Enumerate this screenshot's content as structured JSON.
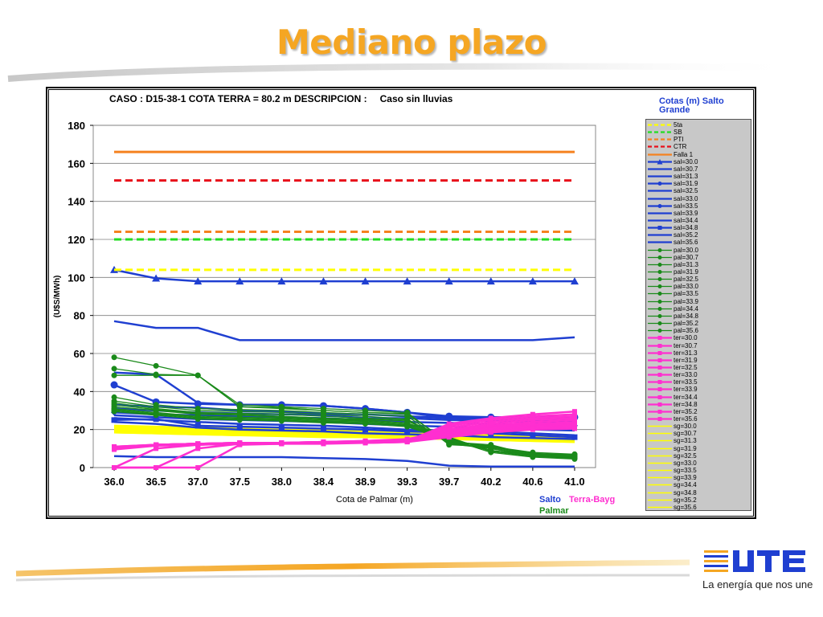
{
  "slide": {
    "title": "Mediano plazo",
    "title_color": "#f5a623",
    "slogan": "La energía que nos une",
    "logo_icon": "ute-logo-icon",
    "logo_text": "UTE"
  },
  "labels": {
    "caso": "CASO : D15-38-1 COTA TERRA = 80.2 m  DESCRIPCION :",
    "descripcion": "Caso sin lluvias",
    "ylabel": "(U$S/MWh)",
    "xlabel": "Cota de Palmar (m)",
    "legend_title": "Cotas (m) Salto Grande",
    "salto": "Salto",
    "terra": "Terra-Bayg",
    "palmar": "Palmar"
  },
  "chart_data": {
    "type": "line",
    "title": "CASO : D15-38-1 COTA TERRA = 80.2 m  DESCRIPCION : Caso sin lluvias",
    "xlabel": "Cota de Palmar (m)",
    "ylabel": "(U$S/MWh)",
    "ylim": [
      0,
      180
    ],
    "yticks": [
      0,
      20,
      40,
      60,
      80,
      100,
      120,
      140,
      160,
      180
    ],
    "categories": [
      "36.0",
      "36.5",
      "37.0",
      "37.5",
      "38.0",
      "38.4",
      "38.9",
      "39.3",
      "39.7",
      "40.2",
      "40.6",
      "41.0"
    ],
    "grid": true,
    "legend_position": "right",
    "colors": {
      "salto": "#1f3fd1",
      "palmar": "#1a8a1a",
      "terra": "#ff2fd0",
      "sg": "#ffff00",
      "5ta": "#ffff00",
      "SB": "#22dd22",
      "PTI": "#f5821f",
      "CTR": "#e8101a",
      "Falla 1": "#f5821f"
    },
    "series": [
      {
        "name": "5ta",
        "group": "ref",
        "style": "dash",
        "color": "#ffff00",
        "values": [
          104,
          104,
          104,
          104,
          104,
          104,
          104,
          104,
          104,
          104,
          104,
          104
        ]
      },
      {
        "name": "SB",
        "group": "ref",
        "style": "dash",
        "color": "#22dd22",
        "values": [
          120,
          120,
          120,
          120,
          120,
          120,
          120,
          120,
          120,
          120,
          120,
          120
        ]
      },
      {
        "name": "PTI",
        "group": "ref",
        "style": "dash",
        "color": "#f5821f",
        "values": [
          124,
          124,
          124,
          124,
          124,
          124,
          124,
          124,
          124,
          124,
          124,
          124
        ]
      },
      {
        "name": "CTR",
        "group": "ref",
        "style": "dash",
        "color": "#e8101a",
        "values": [
          151,
          151,
          151,
          151,
          151,
          151,
          151,
          151,
          151,
          151,
          151,
          151
        ]
      },
      {
        "name": "Falla 1",
        "group": "ref",
        "style": "solid",
        "color": "#f5821f",
        "values": [
          166,
          166,
          166,
          166,
          166,
          166,
          166,
          166,
          166,
          166,
          166,
          166
        ]
      },
      {
        "name": "sal=30.0",
        "group": "salto",
        "marker": "triangle",
        "values": [
          104,
          99.5,
          98,
          98,
          98,
          98,
          98,
          98,
          98,
          98,
          98,
          98
        ]
      },
      {
        "name": "sal=30.7",
        "group": "salto",
        "values": [
          77,
          73.5,
          73.5,
          67,
          67,
          67,
          67,
          67,
          67,
          67,
          67,
          68.5
        ]
      },
      {
        "name": "sal=31.3",
        "group": "salto",
        "values": [
          50,
          49,
          34,
          33,
          33,
          32.5,
          31,
          29,
          26,
          26,
          26,
          26.5
        ]
      },
      {
        "name": "sal=31.9",
        "group": "salto",
        "marker": "circle",
        "values": [
          43.5,
          34.5,
          33.5,
          33,
          33,
          32.5,
          31,
          29,
          27,
          26.5,
          26.5,
          26.5
        ]
      },
      {
        "name": "sal=32.5",
        "group": "salto",
        "values": [
          33,
          32,
          31.5,
          30,
          29.5,
          28.5,
          28,
          27,
          26,
          25.5,
          25,
          25
        ]
      },
      {
        "name": "sal=33.0",
        "group": "salto",
        "values": [
          31,
          30,
          29,
          28.5,
          28,
          27.5,
          26,
          26,
          25,
          24.5,
          24,
          24
        ]
      },
      {
        "name": "sal=33.5",
        "group": "salto",
        "marker": "diamond",
        "values": [
          29,
          28,
          27.5,
          27,
          26.5,
          26,
          25,
          24,
          23.5,
          23,
          22.5,
          22
        ]
      },
      {
        "name": "sal=33.9",
        "group": "salto",
        "values": [
          27.5,
          26.5,
          25.5,
          25,
          24.5,
          24,
          23,
          22,
          21.5,
          21,
          20,
          19.5
        ]
      },
      {
        "name": "sal=34.4",
        "group": "salto",
        "values": [
          26,
          25,
          24,
          23,
          22.5,
          22,
          21,
          20,
          19.5,
          19,
          18,
          17
        ]
      },
      {
        "name": "sal=34.8",
        "group": "salto",
        "marker": "square",
        "values": [
          25,
          25.5,
          22,
          21.5,
          21,
          20.5,
          20,
          19,
          18.5,
          18,
          17,
          16
        ]
      },
      {
        "name": "sal=35.2",
        "group": "salto",
        "values": [
          24,
          23,
          21,
          20,
          19.5,
          19,
          18,
          17.5,
          17,
          16,
          15.5,
          15
        ]
      },
      {
        "name": "sal=35.6",
        "group": "salto",
        "values": [
          6,
          5.5,
          5.5,
          5.5,
          5.5,
          5,
          4.5,
          3.5,
          1,
          0.5,
          0.5,
          0.5
        ]
      },
      {
        "name": "pal=30.0",
        "group": "palmar",
        "values": [
          58,
          53.5,
          48.5,
          32,
          31,
          30,
          29,
          28.5,
          13,
          11.5,
          7,
          7
        ]
      },
      {
        "name": "pal=30.7",
        "group": "palmar",
        "values": [
          52,
          49,
          48.5,
          33,
          32,
          31,
          30,
          29,
          12,
          11,
          7,
          6
        ]
      },
      {
        "name": "pal=31.3",
        "group": "palmar",
        "values": [
          48.5,
          48.5,
          48.5,
          32,
          31.5,
          30,
          29,
          28,
          13.5,
          12,
          6.5,
          5.5
        ]
      },
      {
        "name": "pal=31.9",
        "group": "palmar",
        "values": [
          37,
          33,
          31,
          30.5,
          30,
          29,
          28,
          27,
          12.5,
          10,
          6,
          5
        ]
      },
      {
        "name": "pal=32.5",
        "group": "palmar",
        "values": [
          35,
          32,
          30,
          29.5,
          29,
          28,
          27,
          25.5,
          13,
          10,
          6.5,
          5.5
        ]
      },
      {
        "name": "pal=33.0",
        "group": "palmar",
        "values": [
          34,
          31,
          29,
          28.5,
          28,
          27,
          26,
          25,
          14,
          9,
          6,
          5
        ]
      },
      {
        "name": "pal=33.5",
        "group": "palmar",
        "values": [
          33,
          30.5,
          28.5,
          28,
          27,
          26,
          25.5,
          24.5,
          15,
          8,
          5.5,
          4.5
        ]
      },
      {
        "name": "pal=33.9",
        "group": "palmar",
        "values": [
          32,
          30,
          28,
          27.5,
          26.5,
          25.5,
          25,
          23.5,
          16,
          8.5,
          6,
          5
        ]
      },
      {
        "name": "pal=34.4",
        "group": "palmar",
        "values": [
          31,
          29,
          27,
          26.5,
          26,
          25,
          24.5,
          23,
          15.5,
          9,
          6.5,
          5.5
        ]
      },
      {
        "name": "pal=34.8",
        "group": "palmar",
        "values": [
          30.5,
          28.5,
          26.5,
          26,
          25.5,
          24.5,
          24,
          22.5,
          15,
          10,
          7,
          6
        ]
      },
      {
        "name": "pal=35.2",
        "group": "palmar",
        "values": [
          30,
          28,
          26,
          25.5,
          25,
          24,
          23.5,
          22,
          14.5,
          10.5,
          7.5,
          6.5
        ]
      },
      {
        "name": "pal=35.6",
        "group": "palmar",
        "values": [
          29.5,
          27.5,
          25.5,
          25,
          24.5,
          23.5,
          23,
          21.5,
          14,
          11,
          8,
          7
        ]
      },
      {
        "name": "ter=30.0",
        "group": "terra",
        "values": [
          10,
          12,
          12.5,
          13,
          13,
          13,
          13.5,
          14,
          23,
          26,
          28,
          29.5
        ]
      },
      {
        "name": "ter=30.7",
        "group": "terra",
        "values": [
          11,
          12,
          12.5,
          13,
          13,
          13.5,
          13.5,
          14,
          22,
          25,
          27,
          28
        ]
      },
      {
        "name": "ter=31.3",
        "group": "terra",
        "values": [
          11,
          12,
          12.5,
          13,
          13,
          13.5,
          14,
          14.5,
          21,
          24,
          26,
          27
        ]
      },
      {
        "name": "ter=31.9",
        "group": "terra",
        "values": [
          10.5,
          12,
          12.5,
          13,
          13,
          13,
          13.5,
          14,
          20,
          23,
          25,
          26
        ]
      },
      {
        "name": "ter=32.5",
        "group": "terra",
        "values": [
          10.5,
          12,
          12.5,
          13,
          13,
          13.5,
          14,
          15,
          19.5,
          22,
          24,
          25
        ]
      },
      {
        "name": "ter=33.0",
        "group": "terra",
        "values": [
          10,
          12,
          12.5,
          12.5,
          13,
          13,
          13.5,
          14.5,
          19,
          21.5,
          23,
          24
        ]
      },
      {
        "name": "ter=33.5",
        "group": "terra",
        "values": [
          10,
          12,
          12.5,
          12.5,
          13,
          13,
          13.5,
          14,
          18.5,
          21,
          22.5,
          23
        ]
      },
      {
        "name": "ter=33.9",
        "group": "terra",
        "values": [
          10,
          12,
          12,
          12.5,
          13,
          13,
          13.5,
          14,
          18,
          20.5,
          22,
          22.5
        ]
      },
      {
        "name": "ter=34.4",
        "group": "terra",
        "values": [
          9.5,
          11.5,
          12,
          12.5,
          12.5,
          13,
          13.5,
          14,
          17.5,
          20,
          21.5,
          22
        ]
      },
      {
        "name": "ter=34.8",
        "group": "terra",
        "values": [
          0,
          10,
          12,
          12.5,
          12.5,
          13,
          13,
          13.5,
          17,
          19.5,
          21,
          21.5
        ]
      },
      {
        "name": "ter=35.2",
        "group": "terra",
        "values": [
          0,
          0,
          10,
          12.5,
          12.5,
          13,
          13,
          13.5,
          16.5,
          19,
          20.5,
          21
        ]
      },
      {
        "name": "ter=35.6",
        "group": "terra",
        "values": [
          0,
          0,
          0,
          12,
          12.5,
          12.5,
          13,
          13.5,
          16,
          18.5,
          20,
          20.5
        ]
      },
      {
        "name": "sg=30.0",
        "group": "sg",
        "values": [
          22,
          21.5,
          21,
          20.5,
          20,
          19.5,
          19,
          18.5,
          18,
          17.5,
          17,
          16.5
        ]
      },
      {
        "name": "sg=30.7",
        "group": "sg",
        "values": [
          21.5,
          21,
          20.5,
          20,
          19.5,
          19,
          18.5,
          18,
          17.5,
          17,
          16.5,
          16
        ]
      },
      {
        "name": "sg=31.3",
        "group": "sg",
        "values": [
          21,
          20.5,
          20,
          19.5,
          19,
          18.5,
          18,
          17.5,
          17,
          16.5,
          16,
          15.5
        ]
      },
      {
        "name": "sg=31.9",
        "group": "sg",
        "values": [
          20.5,
          20,
          19.5,
          19,
          18.5,
          18,
          17.5,
          17,
          16.5,
          16,
          15.5,
          15
        ]
      },
      {
        "name": "sg=32.5",
        "group": "sg",
        "values": [
          20,
          19.5,
          19,
          18.5,
          18,
          17.5,
          17,
          16.5,
          16,
          15.5,
          15,
          14.5
        ]
      },
      {
        "name": "sg=33.0",
        "group": "sg",
        "values": [
          20,
          19.5,
          19,
          18.5,
          18,
          17.5,
          17,
          16.5,
          16.5,
          16,
          15.5,
          15
        ]
      },
      {
        "name": "sg=33.5",
        "group": "sg",
        "values": [
          19.5,
          19,
          18.5,
          18,
          17.5,
          17,
          16.5,
          16.5,
          16,
          15.5,
          15,
          14.5
        ]
      },
      {
        "name": "sg=33.9",
        "group": "sg",
        "values": [
          19.5,
          19,
          18.5,
          18,
          17.5,
          17,
          17,
          16.5,
          16,
          15.5,
          15,
          14.5
        ]
      },
      {
        "name": "sg=34.4",
        "group": "sg",
        "values": [
          19,
          18.5,
          18,
          17.5,
          17.5,
          17,
          16.5,
          16,
          15.5,
          15,
          14.5,
          14
        ]
      },
      {
        "name": "sg=34.8",
        "group": "sg",
        "values": [
          19,
          18.5,
          18,
          17.5,
          17,
          16.5,
          16.5,
          16,
          15.5,
          15,
          14.5,
          14
        ]
      },
      {
        "name": "sg=35.2",
        "group": "sg",
        "values": [
          18.5,
          18,
          17.5,
          17,
          17,
          16.5,
          16,
          15.5,
          15,
          14.5,
          14,
          13.5
        ]
      },
      {
        "name": "sg=35.6",
        "group": "sg",
        "values": [
          18.5,
          18,
          17.5,
          17,
          16.5,
          16,
          16,
          15.5,
          15,
          14.5,
          14,
          13.5
        ]
      }
    ]
  }
}
